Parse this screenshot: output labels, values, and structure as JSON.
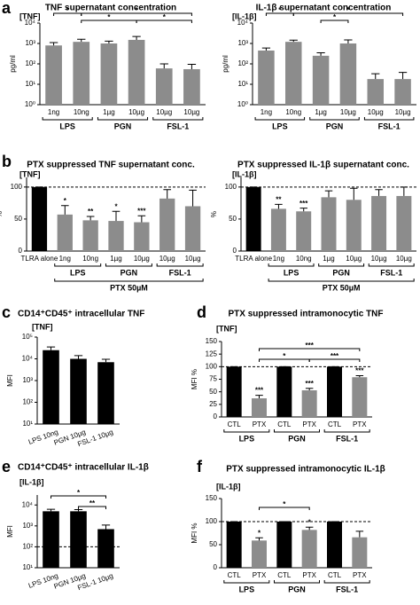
{
  "chart_data": [
    {
      "panel": "a",
      "type": "bar",
      "title": "TNF supernatant concentration",
      "label": "[TNF]",
      "y_label": "pg/ml",
      "log_scale": true,
      "categories": [
        "1ng",
        "10ng",
        "1µg",
        "10µg",
        "10µg",
        "10µg"
      ],
      "values": [
        800,
        1200,
        1000,
        1500,
        60,
        55
      ],
      "errors": [
        300,
        400,
        300,
        700,
        40,
        40
      ],
      "colors": [
        "#8c8c8c",
        "#8c8c8c",
        "#8c8c8c",
        "#8c8c8c",
        "#8c8c8c",
        "#8c8c8c"
      ],
      "groups": [
        {
          "label": "LPS",
          "from": 0,
          "to": 1
        },
        {
          "label": "PGN",
          "from": 2,
          "to": 3
        },
        {
          "label": "FSL-1",
          "from": 4,
          "to": 5
        }
      ],
      "brackets": [
        {
          "label": "*",
          "from": 1,
          "to": 5
        },
        {
          "label": "*",
          "from": 1,
          "to": 3
        },
        {
          "label": "*",
          "from": 0,
          "to": 1
        },
        {
          "label": "*",
          "from": 3,
          "to": 5
        }
      ],
      "ylim": [
        1,
        10000
      ],
      "yticks": [
        {
          "value": 1,
          "label": "10⁰"
        },
        {
          "value": 10,
          "label": "10¹"
        },
        {
          "value": 100,
          "label": "10²"
        },
        {
          "value": 1000,
          "label": "10³"
        },
        {
          "value": 10000,
          "label": "10⁴"
        }
      ]
    },
    {
      "type": "bar",
      "title": "IL-1β supernatant concentration",
      "label": "[IL-1β]",
      "y_label": "pg/ml",
      "log_scale": true,
      "categories": [
        "1ng",
        "10ng",
        "1µg",
        "10µg",
        "10µg",
        "10µg"
      ],
      "values": [
        450,
        1200,
        250,
        1000,
        18,
        18
      ],
      "errors": [
        150,
        250,
        100,
        500,
        15,
        20
      ],
      "colors": [
        "#8c8c8c",
        "#8c8c8c",
        "#8c8c8c",
        "#8c8c8c",
        "#8c8c8c",
        "#8c8c8c"
      ],
      "groups": [
        {
          "label": "LPS",
          "from": 0,
          "to": 1
        },
        {
          "label": "PGN",
          "from": 2,
          "to": 3
        },
        {
          "label": "FSL-1",
          "from": 4,
          "to": 5
        }
      ],
      "brackets": [
        {
          "label": "*",
          "from": 1,
          "to": 5
        },
        {
          "label": "*",
          "from": 0,
          "to": 1
        },
        {
          "label": "*",
          "from": 2,
          "to": 3
        }
      ],
      "ylim": [
        1,
        10000
      ],
      "yticks": [
        {
          "value": 1,
          "label": "10⁰"
        },
        {
          "value": 10,
          "label": "10¹"
        },
        {
          "value": 100,
          "label": "10²"
        },
        {
          "value": 1000,
          "label": "10³"
        },
        {
          "value": 10000,
          "label": "10⁴"
        }
      ]
    },
    {
      "panel": "b",
      "type": "bar",
      "title": "PTX suppressed TNF supernatant conc.",
      "label": "[TNF]",
      "y_label": "%",
      "categories": [
        "TLRA alone",
        "1ng",
        "10ng",
        "1µg",
        "10µg",
        "10µg",
        "10µg"
      ],
      "values": [
        100,
        57,
        48,
        47,
        45,
        82,
        70
      ],
      "errors": [
        0,
        14,
        6,
        15,
        10,
        14,
        25
      ],
      "stars": [
        null,
        "*",
        "**",
        "*",
        "***",
        null,
        null
      ],
      "colors": [
        "#000000",
        "#8c8c8c",
        "#8c8c8c",
        "#8c8c8c",
        "#8c8c8c",
        "#8c8c8c",
        "#8c8c8c"
      ],
      "groups": [
        {
          "label": "LPS",
          "from": 1,
          "to": 2
        },
        {
          "label": "PGN",
          "from": 3,
          "to": 4
        },
        {
          "label": "FSL-1",
          "from": 5,
          "to": 6
        }
      ],
      "outer_group": {
        "label": "PTX 50µM",
        "from": 1,
        "to": 6
      },
      "reference_line": 100,
      "ylim": [
        0,
        115
      ],
      "yticks": [
        0,
        50,
        100
      ]
    },
    {
      "type": "bar",
      "title": "PTX suppressed IL-1β supernatant conc.",
      "label": "[IL-1β]",
      "y_label": "%",
      "categories": [
        "TLRA alone",
        "1ng",
        "10ng",
        "1µg",
        "10µg",
        "10µg",
        "10µg"
      ],
      "values": [
        100,
        66,
        62,
        84,
        80,
        86,
        86
      ],
      "errors": [
        0,
        7,
        5,
        10,
        18,
        10,
        14
      ],
      "stars": [
        null,
        "**",
        "***",
        null,
        null,
        null,
        null
      ],
      "colors": [
        "#000000",
        "#8c8c8c",
        "#8c8c8c",
        "#8c8c8c",
        "#8c8c8c",
        "#8c8c8c",
        "#8c8c8c"
      ],
      "groups": [
        {
          "label": "LPS",
          "from": 1,
          "to": 2
        },
        {
          "label": "PGN",
          "from": 3,
          "to": 4
        },
        {
          "label": "FSL-1",
          "from": 5,
          "to": 6
        }
      ],
      "outer_group": {
        "label": "PTX 50µM",
        "from": 1,
        "to": 6
      },
      "reference_line": 100,
      "ylim": [
        0,
        115
      ],
      "yticks": [
        0,
        50,
        100
      ]
    },
    {
      "panel": "c",
      "type": "bar",
      "title": "CD14⁺CD45⁺ intracellular TNF",
      "label": "[TNF]",
      "y_label": "MFI",
      "log_scale": true,
      "categories": [
        "LPS 10ng",
        "PGN 10µg",
        "FSL-1 10µg"
      ],
      "values": [
        25000,
        10000,
        7000
      ],
      "errors": [
        10000,
        4000,
        2500
      ],
      "colors": [
        "#000000",
        "#000000",
        "#000000"
      ],
      "ylim": [
        10,
        100000
      ],
      "yticks": [
        {
          "value": 10,
          "label": "10¹"
        },
        {
          "value": 100,
          "label": "10²"
        },
        {
          "value": 1000,
          "label": "10³"
        },
        {
          "value": 10000,
          "label": "10⁴"
        },
        {
          "value": 100000,
          "label": "10⁵"
        }
      ]
    },
    {
      "panel": "d",
      "type": "bar",
      "title": "PTX suppressed intramonocytic TNF",
      "label": "[TNF]",
      "y_label": "MFI %",
      "categories": [
        "CTL",
        "PTX",
        "CTL",
        "PTX",
        "CTL",
        "PTX"
      ],
      "values": [
        100,
        37,
        100,
        53,
        100,
        79
      ],
      "errors": [
        0,
        6,
        0,
        4,
        0,
        3
      ],
      "stars": [
        null,
        "***",
        null,
        "***",
        null,
        "***"
      ],
      "colors": [
        "#000000",
        "#8c8c8c",
        "#000000",
        "#8c8c8c",
        "#000000",
        "#8c8c8c"
      ],
      "groups": [
        {
          "label": "LPS",
          "from": 0,
          "to": 1
        },
        {
          "label": "PGN",
          "from": 2,
          "to": 3
        },
        {
          "label": "FSL-1",
          "from": 4,
          "to": 5
        }
      ],
      "brackets": [
        {
          "label": "***",
          "from": 1,
          "to": 5
        },
        {
          "label": "*",
          "from": 1,
          "to": 3
        },
        {
          "label": "***",
          "from": 3,
          "to": 5
        }
      ],
      "reference_line": 100,
      "ylim": [
        0,
        150
      ],
      "yticks": [
        0,
        25,
        50,
        75,
        100,
        125,
        150
      ]
    },
    {
      "panel": "e",
      "type": "bar",
      "title": "CD14⁺CD45⁺ intracellular IL-1β",
      "label": "[IL-1β]",
      "y_label": "MFI",
      "log_scale": true,
      "categories": [
        "LPS 10ng",
        "PGN 10µg",
        "FSL-1 10µg"
      ],
      "values": [
        5000,
        5000,
        700
      ],
      "errors": [
        1200,
        1000,
        400
      ],
      "colors": [
        "#000000",
        "#000000",
        "#000000"
      ],
      "brackets": [
        {
          "label": "*",
          "from": 0,
          "to": 2
        },
        {
          "label": "**",
          "from": 1,
          "to": 2
        }
      ],
      "reference_line": 100,
      "ylim": [
        10,
        30000
      ],
      "yticks": [
        {
          "value": 10,
          "label": "10¹"
        },
        {
          "value": 100,
          "label": "10²"
        },
        {
          "value": 1000,
          "label": "10³"
        },
        {
          "value": 10000,
          "label": "10⁴"
        }
      ]
    },
    {
      "panel": "f",
      "type": "bar",
      "title": "PTX suppressed intramonocytic IL-1β",
      "label": "[IL-1β]",
      "y_label": "MFI %",
      "categories": [
        "CTL",
        "PTX",
        "CTL",
        "PTX",
        "CTL",
        "PTX"
      ],
      "values": [
        100,
        59,
        100,
        82,
        100,
        66
      ],
      "errors": [
        0,
        6,
        0,
        6,
        0,
        13
      ],
      "stars": [
        null,
        "*",
        null,
        "*",
        null,
        null
      ],
      "colors": [
        "#000000",
        "#8c8c8c",
        "#000000",
        "#8c8c8c",
        "#000000",
        "#8c8c8c"
      ],
      "groups": [
        {
          "label": "LPS",
          "from": 0,
          "to": 1
        },
        {
          "label": "PGN",
          "from": 2,
          "to": 3
        },
        {
          "label": "FSL-1",
          "from": 4,
          "to": 5
        }
      ],
      "brackets": [
        {
          "label": "*",
          "from": 1,
          "to": 3
        }
      ],
      "reference_line": 100,
      "ylim": [
        0,
        150
      ],
      "yticks": [
        0,
        50,
        100,
        150
      ]
    }
  ]
}
